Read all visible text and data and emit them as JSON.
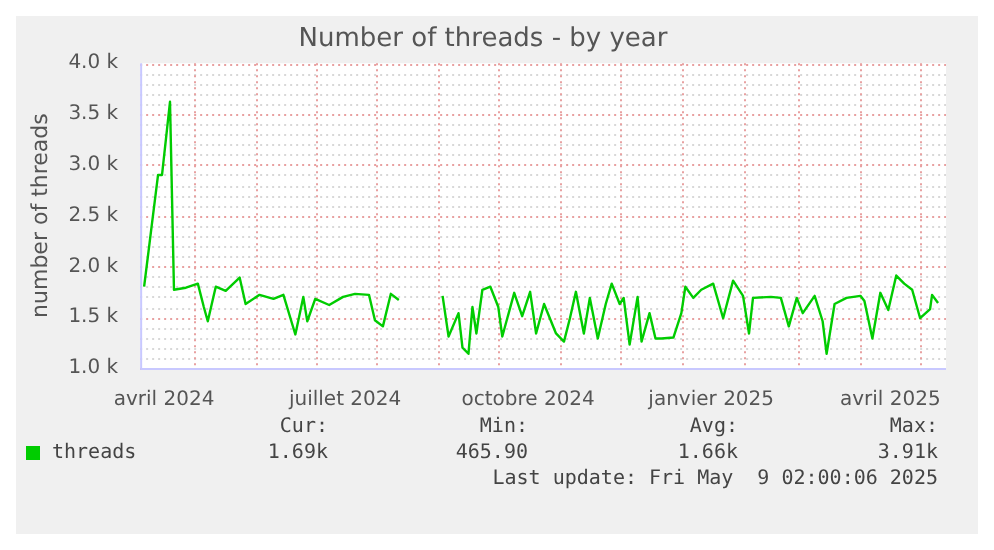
{
  "chart_data": {
    "type": "line",
    "title": "Number of threads - by year",
    "ylabel": "number of threads",
    "x": [
      "2024-04-06",
      "2024-04-10",
      "2024-04-13",
      "2024-04-15",
      "2024-04-19",
      "2024-04-21",
      "2024-04-27",
      "2024-05-03",
      "2024-05-06",
      "2024-05-08",
      "2024-05-12",
      "2024-05-17",
      "2024-05-24",
      "2024-05-27",
      "2024-06-03",
      "2024-06-10",
      "2024-06-15",
      "2024-06-21",
      "2024-06-25",
      "2024-06-27",
      "2024-07-01",
      "2024-07-08",
      "2024-07-15",
      "2024-07-21",
      "2024-07-28",
      "2024-07-31",
      "2024-08-04",
      "2024-08-08",
      "2024-08-12",
      "2024-08-22",
      "2024-09-03",
      "2024-09-06",
      "2024-09-11",
      "2024-09-13",
      "2024-09-16",
      "2024-09-18",
      "2024-09-20",
      "2024-09-23",
      "2024-09-27",
      "2024-10-01",
      "2024-10-03",
      "2024-10-09",
      "2024-10-13",
      "2024-10-17",
      "2024-10-20",
      "2024-10-24",
      "2024-10-30",
      "2024-11-03",
      "2024-11-06",
      "2024-11-09",
      "2024-11-13",
      "2024-11-16",
      "2024-11-20",
      "2024-11-24",
      "2024-11-27",
      "2024-12-01",
      "2024-12-03",
      "2024-12-06",
      "2024-12-10",
      "2024-12-12",
      "2024-12-16",
      "2024-12-19",
      "2024-12-22",
      "2024-12-28",
      "2025-01-01",
      "2025-01-03",
      "2025-01-07",
      "2025-01-11",
      "2025-01-17",
      "2025-01-22",
      "2025-01-27",
      "2025-02-01",
      "2025-02-04",
      "2025-02-06",
      "2025-02-15",
      "2025-02-20",
      "2025-02-24",
      "2025-02-28",
      "2025-03-03",
      "2025-03-09",
      "2025-03-13",
      "2025-03-15",
      "2025-03-19",
      "2025-03-25",
      "2025-04-01",
      "2025-04-03",
      "2025-04-07",
      "2025-04-11",
      "2025-04-15",
      "2025-04-19",
      "2025-04-23",
      "2025-04-27",
      "2025-05-01",
      "2025-05-06",
      "2025-05-07",
      "2025-05-10"
    ],
    "series": [
      {
        "name": "threads",
        "color": "#00cc00",
        "values": [
          1800,
          2430,
          2900,
          2900,
          3620,
          1770,
          1790,
          1830,
          1600,
          1460,
          1800,
          1760,
          1890,
          1630,
          1720,
          1680,
          1720,
          1330,
          1700,
          1460,
          1680,
          1620,
          1700,
          1730,
          1720,
          1470,
          1410,
          1730,
          1670,
          null,
          1710,
          1310,
          1540,
          1200,
          1140,
          1600,
          1340,
          1770,
          1800,
          1600,
          1310,
          1740,
          1510,
          1750,
          1340,
          1630,
          1340,
          1260,
          1490,
          1750,
          1340,
          1690,
          1290,
          1630,
          1830,
          1630,
          1690,
          1230,
          1700,
          1260,
          1540,
          1290,
          1290,
          1300,
          1540,
          1800,
          1690,
          1770,
          1830,
          1490,
          1860,
          1710,
          1340,
          1690,
          1700,
          1690,
          1410,
          1690,
          1540,
          1710,
          1460,
          1140,
          1630,
          1690,
          1710,
          1660,
          1290,
          1740,
          1570,
          1910,
          1830,
          1770,
          1490,
          1580,
          1720,
          1640
        ]
      }
    ],
    "xlim": [
      "2024-04-04",
      "2025-05-14"
    ],
    "xticks": [
      {
        "value": "2024-04-16",
        "label": "avril 2024"
      },
      {
        "value": "2024-05-01",
        "label": null
      },
      {
        "value": "2024-06-01",
        "label": null
      },
      {
        "value": "2024-07-01",
        "label": null
      },
      {
        "value": "2024-07-16",
        "label": "juillet 2024"
      },
      {
        "value": "2024-08-01",
        "label": null
      },
      {
        "value": "2024-09-01",
        "label": null
      },
      {
        "value": "2024-10-01",
        "label": null
      },
      {
        "value": "2024-10-16",
        "label": "octobre 2024"
      },
      {
        "value": "2024-11-01",
        "label": null
      },
      {
        "value": "2024-12-01",
        "label": null
      },
      {
        "value": "2025-01-01",
        "label": null
      },
      {
        "value": "2025-01-16",
        "label": "janvier 2025"
      },
      {
        "value": "2025-02-01",
        "label": null
      },
      {
        "value": "2025-03-01",
        "label": null
      },
      {
        "value": "2025-04-01",
        "label": null
      },
      {
        "value": "2025-04-16",
        "label": "avril 2025"
      },
      {
        "value": "2025-05-01",
        "label": null
      }
    ],
    "ylim": [
      1000,
      4000
    ],
    "yticks": [
      {
        "value": 1000,
        "label": "1.0 k"
      },
      {
        "value": 1500,
        "label": "1.5 k"
      },
      {
        "value": 2000,
        "label": "2.0 k"
      },
      {
        "value": 2500,
        "label": "2.5 k"
      },
      {
        "value": 3000,
        "label": "3.0 k"
      },
      {
        "value": 3500,
        "label": "3.5 k"
      },
      {
        "value": 4000,
        "label": "4.0 k"
      }
    ],
    "grid": true,
    "legend": "bottom left",
    "marker": "none",
    "line_style": "solid",
    "annotations": [
      "Cur:",
      "Min:",
      "Avg:",
      "Max:",
      "1.69k",
      "465.90",
      "1.66k",
      "3.91k",
      "Last update: Fri May  9 02:00:06 2025"
    ]
  }
}
